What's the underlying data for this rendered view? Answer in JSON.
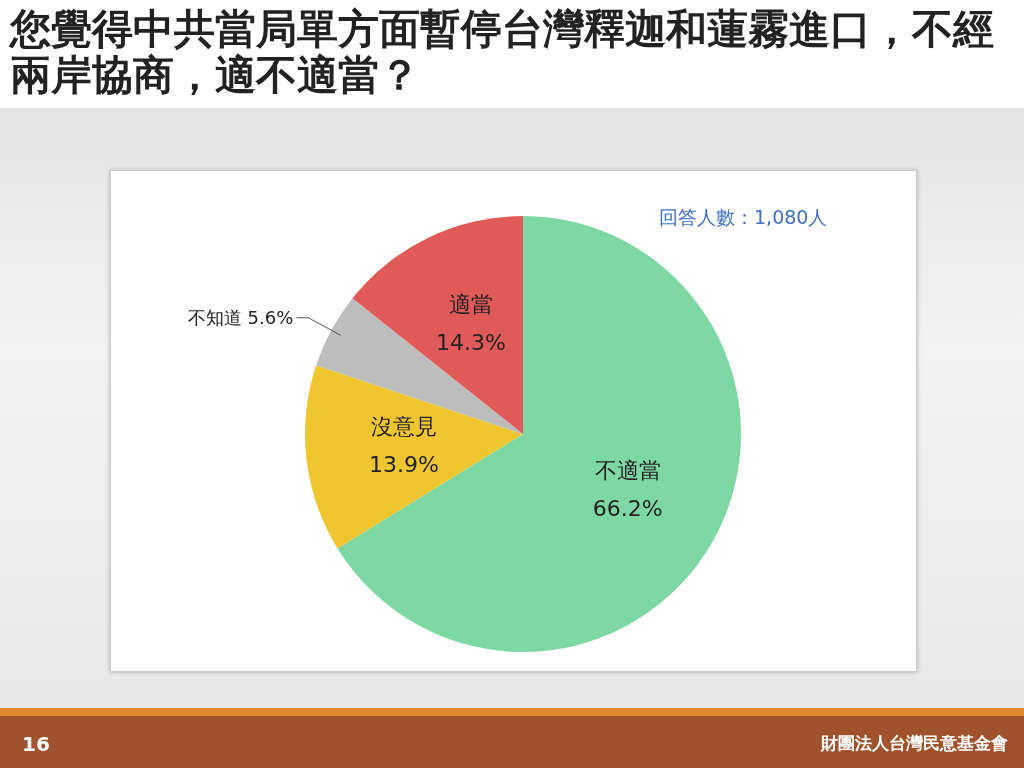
{
  "chart_data": {
    "type": "pie",
    "title": "您覺得中共當局單方面暫停台灣釋迦和蓮霧進口，不經兩岸協商，適不適當？",
    "categories": [
      "不適當",
      "沒意見",
      "不知道",
      "適當"
    ],
    "values": [
      66.2,
      13.9,
      5.6,
      14.3
    ],
    "value_labels": [
      "66.2%",
      "13.9%",
      "5.6%",
      "14.3%"
    ],
    "colors": [
      "#7dd8a4",
      "#f0c630",
      "#bdbdbd",
      "#e05a5a"
    ],
    "annotations": [
      "回答人數：1,080人",
      "16",
      "財團法人台灣民意基金會"
    ]
  }
}
